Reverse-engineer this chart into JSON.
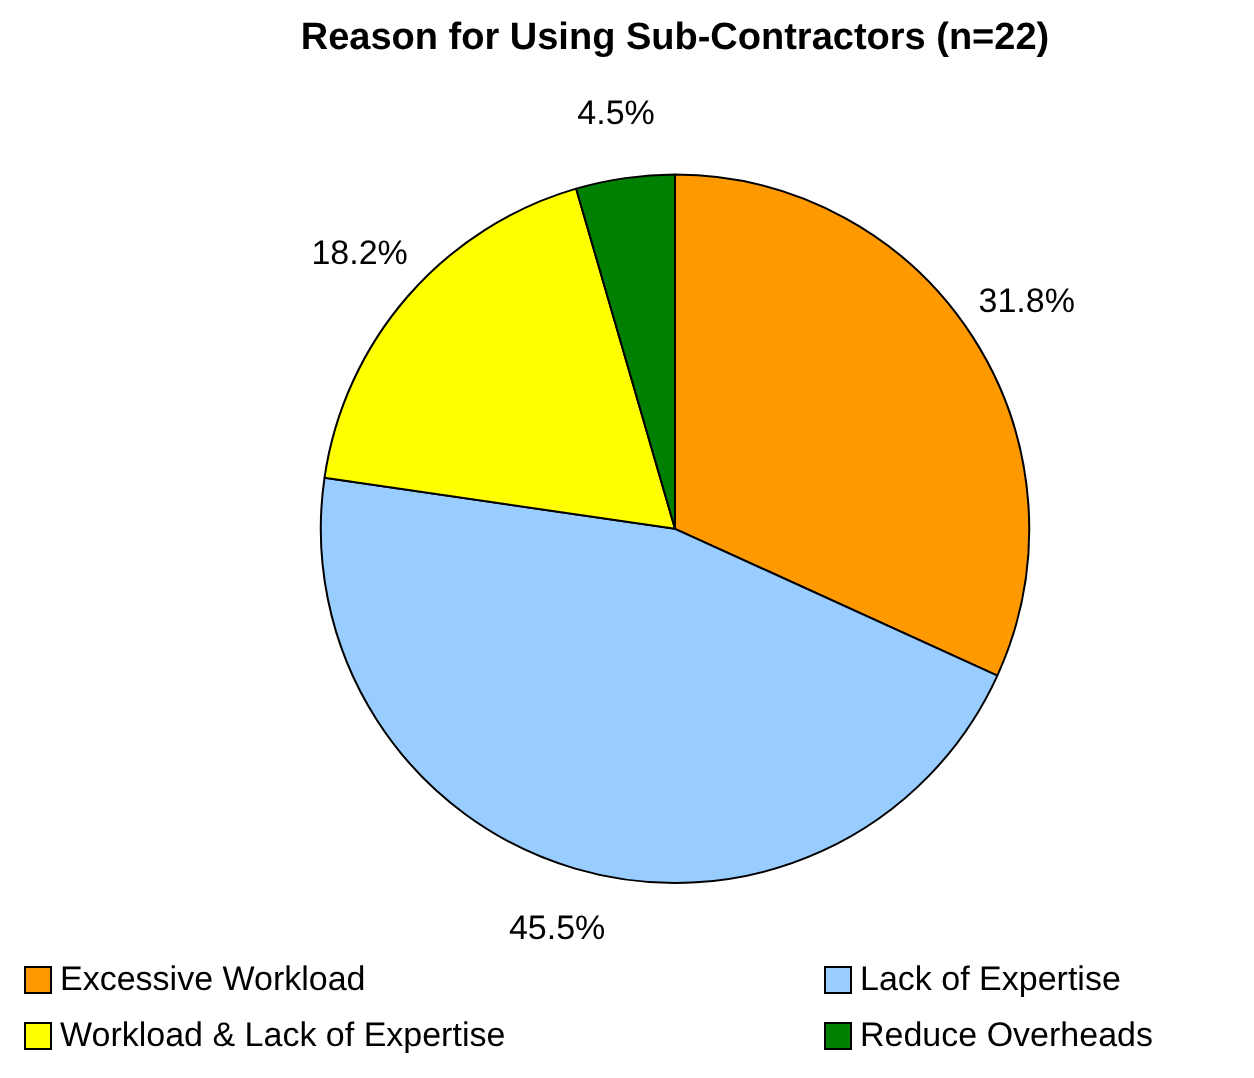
{
  "chart_data": {
    "type": "pie",
    "title": "Reason for Using Sub-Contractors (n=22)",
    "categories": [
      "Excessive Workload",
      "Lack of Expertise",
      "Workload & Lack of Expertise",
      "Reduce Overheads"
    ],
    "values": [
      31.8,
      45.5,
      18.2,
      4.5
    ],
    "colors": [
      "#ff9900",
      "#99ccff",
      "#ffff00",
      "#008000"
    ],
    "value_labels": [
      "31.8%",
      "45.5%",
      "18.2%",
      "4.5%"
    ],
    "legend": "bottom"
  }
}
